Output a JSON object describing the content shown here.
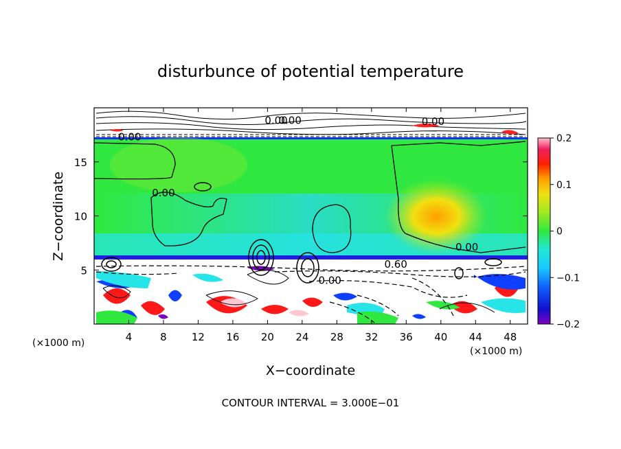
{
  "chart_data": {
    "type": "heatmap",
    "title": "disturbunce of potential temperature",
    "xlabel": "X−coordinate",
    "ylabel": "Z−coordinate",
    "x_unit_left": "(×1000 m)",
    "x_unit_right": "(×1000 m)",
    "x_ticks": [
      "4",
      "8",
      "12",
      "16",
      "20",
      "24",
      "28",
      "32",
      "36",
      "40",
      "44",
      "48"
    ],
    "y_ticks": [
      "5",
      "10",
      "15"
    ],
    "xlim": [
      0,
      50
    ],
    "ylim": [
      0,
      20
    ],
    "colorbar": {
      "ticks": [
        "0.2",
        "0.1",
        "0",
        "−0.1",
        "−0.2"
      ],
      "range": [
        -0.2,
        0.2
      ]
    },
    "contour_labels": [
      "0.00",
      "0.00",
      "0.00",
      "0.00",
      "0.60",
      "0.00",
      "0.00",
      "0.00"
    ],
    "footer": "CONTOUR INTERVAL = 3.000E−01",
    "colors": {
      "background_green": "#2ee840",
      "cyan": "#27e4e8",
      "yellow": "#e8e020",
      "orange": "#ffb000",
      "red": "#ff1010",
      "pink": "#ffc0c0",
      "blue": "#1030ff",
      "purple": "#8000c0"
    }
  }
}
